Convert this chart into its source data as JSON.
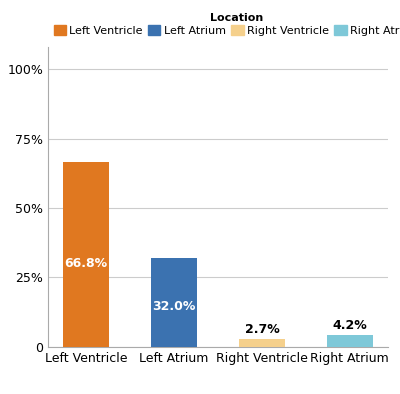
{
  "categories": [
    "Left Ventricle",
    "Left Atrium",
    "Right Ventricle",
    "Right Atrium"
  ],
  "values": [
    66.8,
    32.0,
    2.7,
    4.2
  ],
  "bar_colors": [
    "#E07820",
    "#3B72B0",
    "#F5D08C",
    "#7EC8D8"
  ],
  "label_colors": [
    "white",
    "white",
    "black",
    "black"
  ],
  "legend_title": "Location",
  "legend_labels": [
    "Left Ventricle",
    "Left Atrium",
    "Right Ventricle",
    "Right Atrium"
  ],
  "legend_colors": [
    "#E07820",
    "#3B72B0",
    "#F5D08C",
    "#7EC8D8"
  ],
  "yticks": [
    0,
    25,
    50,
    75,
    100
  ],
  "ytick_labels": [
    "0",
    "25%",
    "50%",
    "75%",
    "100%"
  ],
  "ylim": [
    0,
    108
  ],
  "background_color": "#ffffff",
  "grid_color": "#cccccc",
  "tick_fontsize": 9,
  "legend_fontsize": 8,
  "bar_label_fontsize": 9
}
